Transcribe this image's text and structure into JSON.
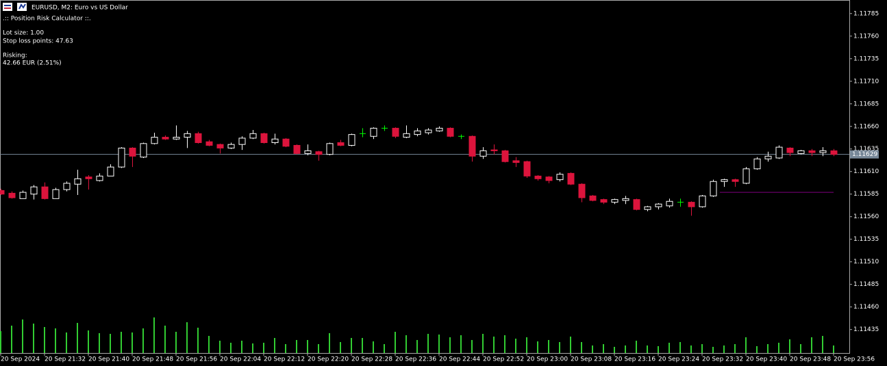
{
  "chart_data": {
    "type": "candlestick",
    "title": "EURUSD, M2:  Euro vs US Dollar",
    "overlay_text": [
      ".:: Position Risk Calculator ::.",
      "Lot size: 1.00",
      "Stop loss points: 47.63",
      "Risking:",
      "42.66 EUR (2.51%)"
    ],
    "categories": [
      "20 Sep 2024",
      null,
      null,
      null,
      "20 Sep 21:32",
      null,
      null,
      null,
      "20 Sep 21:40",
      null,
      null,
      null,
      "20 Sep 21:48",
      null,
      null,
      null,
      "20 Sep 21:56",
      null,
      null,
      null,
      "20 Sep 22:04",
      null,
      null,
      null,
      "20 Sep 22:12",
      null,
      null,
      null,
      "20 Sep 22:20",
      null,
      null,
      null,
      "20 Sep 22:28",
      null,
      null,
      null,
      "20 Sep 22:36",
      null,
      null,
      null,
      "20 Sep 22:44",
      null,
      null,
      null,
      "20 Sep 22:52",
      null,
      null,
      null,
      "20 Sep 23:00",
      null,
      null,
      null,
      "20 Sep 23:08",
      null,
      null,
      null,
      "20 Sep 23:16",
      null,
      null,
      null,
      "20 Sep 23:24",
      null,
      null,
      null,
      "20 Sep 23:32",
      null,
      null,
      null,
      "20 Sep 23:40",
      null,
      null,
      null,
      "20 Sep 23:48",
      null,
      null,
      null,
      "20 Sep 23:56"
    ],
    "open": [
      1.11589,
      1.11586,
      1.1158,
      1.11585,
      1.11593,
      1.1158,
      1.1159,
      1.11596,
      1.11604,
      1.116,
      1.11605,
      1.11615,
      1.11636,
      1.11626,
      1.11641,
      1.11648,
      1.11646,
      1.11648,
      1.11652,
      1.11643,
      1.1164,
      1.11636,
      1.1164,
      1.11647,
      1.11652,
      1.11642,
      1.11646,
      1.11639,
      1.1163,
      1.11632,
      1.11629,
      1.11642,
      1.11639,
      1.11652,
      1.11649,
      1.11658,
      1.11658,
      1.11648,
      1.11651,
      1.11653,
      1.11655,
      1.11658,
      1.11649,
      1.11649,
      1.11627,
      1.11634,
      1.11633,
      1.11622,
      1.11621,
      1.11605,
      1.11604,
      1.11601,
      1.11608,
      1.11596,
      1.11583,
      1.11579,
      1.11576,
      1.11578,
      1.11579,
      1.11568,
      1.11571,
      1.11572,
      1.11576,
      1.11576,
      1.11571,
      1.11583,
      1.11599,
      1.11601,
      1.11597,
      1.11613,
      1.11624,
      1.11625,
      1.11636,
      1.1163,
      1.11633,
      1.11631,
      1.11633
    ],
    "high": [
      1.11591,
      1.11588,
      1.11589,
      1.11595,
      1.11598,
      1.11592,
      1.11599,
      1.11612,
      1.11606,
      1.11608,
      1.11618,
      1.11637,
      1.11637,
      1.11642,
      1.11653,
      1.1165,
      1.11661,
      1.11655,
      1.11654,
      1.11645,
      1.11641,
      1.11642,
      1.11649,
      1.11656,
      1.11653,
      1.11652,
      1.11647,
      1.1164,
      1.1164,
      1.11633,
      1.11642,
      1.11645,
      1.11652,
      1.11658,
      1.11659,
      1.11661,
      1.11659,
      1.11661,
      1.11658,
      1.11658,
      1.1166,
      1.11659,
      1.11651,
      1.1165,
      1.11637,
      1.1164,
      1.11634,
      1.11626,
      1.11622,
      1.11606,
      1.11605,
      1.11609,
      1.11609,
      1.11597,
      1.11584,
      1.1158,
      1.1158,
      1.11583,
      1.1158,
      1.11572,
      1.11575,
      1.1158,
      1.1158,
      1.11577,
      1.11584,
      1.11601,
      1.11602,
      1.11602,
      1.11615,
      1.11626,
      1.11632,
      1.11639,
      1.11637,
      1.11634,
      1.11635,
      1.11637,
      1.11635
    ],
    "low": [
      1.11584,
      1.1158,
      1.1158,
      1.11579,
      1.11579,
      1.1158,
      1.11588,
      1.11584,
      1.1159,
      1.11599,
      1.11605,
      1.11614,
      1.11615,
      1.11625,
      1.1164,
      1.11645,
      1.11645,
      1.11636,
      1.11641,
      1.11638,
      1.1163,
      1.11635,
      1.11634,
      1.11646,
      1.11641,
      1.1164,
      1.11637,
      1.11629,
      1.11628,
      1.11622,
      1.11628,
      1.11638,
      1.11638,
      1.11648,
      1.11646,
      1.11655,
      1.11647,
      1.11647,
      1.11649,
      1.11651,
      1.11654,
      1.11648,
      1.11646,
      1.11621,
      1.11624,
      1.11629,
      1.1162,
      1.11615,
      1.11603,
      1.116,
      1.11597,
      1.11599,
      1.11595,
      1.11576,
      1.11577,
      1.11574,
      1.11574,
      1.11574,
      1.11567,
      1.11566,
      1.11568,
      1.1157,
      1.11571,
      1.11561,
      1.1157,
      1.11582,
      1.11593,
      1.11593,
      1.11596,
      1.11612,
      1.11621,
      1.11624,
      1.11627,
      1.11629,
      1.11627,
      1.11627,
      1.11627
    ],
    "close": [
      1.11585,
      1.11581,
      1.11587,
      1.11593,
      1.1158,
      1.1159,
      1.11597,
      1.11602,
      1.11602,
      1.11605,
      1.11615,
      1.11636,
      1.11627,
      1.11641,
      1.11648,
      1.11646,
      1.11648,
      1.11652,
      1.11642,
      1.11639,
      1.11636,
      1.1164,
      1.11647,
      1.11652,
      1.11642,
      1.11646,
      1.11638,
      1.1163,
      1.11633,
      1.11629,
      1.11641,
      1.11639,
      1.11651,
      1.11652,
      1.11658,
      1.11658,
      1.11649,
      1.11652,
      1.11655,
      1.11656,
      1.11658,
      1.11649,
      1.11649,
      1.11627,
      1.11633,
      1.11633,
      1.11621,
      1.1162,
      1.11605,
      1.11602,
      1.116,
      1.11607,
      1.11596,
      1.11581,
      1.11578,
      1.11576,
      1.11579,
      1.1158,
      1.11568,
      1.11571,
      1.11574,
      1.11577,
      1.11576,
      1.11571,
      1.11583,
      1.11599,
      1.11601,
      1.11599,
      1.11613,
      1.11624,
      1.11627,
      1.11637,
      1.11631,
      1.11633,
      1.11631,
      1.11633,
      1.11629
    ],
    "volumes": [
      32,
      40,
      49,
      43,
      38,
      36,
      30,
      44,
      33,
      29,
      28,
      31,
      30,
      36,
      52,
      40,
      31,
      45,
      37,
      25,
      18,
      15,
      18,
      14,
      15,
      22,
      13,
      19,
      19,
      13,
      29,
      16,
      22,
      22,
      17,
      13,
      31,
      26,
      19,
      28,
      27,
      23,
      26,
      19,
      28,
      24,
      26,
      21,
      23,
      17,
      19,
      16,
      24,
      16,
      11,
      13,
      9,
      11,
      18,
      11,
      10,
      15,
      16,
      11,
      13,
      9,
      11,
      13,
      23,
      10,
      13,
      15,
      20,
      13,
      23,
      25,
      11
    ],
    "ylim": [
      1.11409,
      1.118
    ],
    "yticks": [
      1.11785,
      {
        "value": 1.1176,
        "label": "1.11760"
      },
      1.11735,
      {
        "value": 1.1171,
        "label": "1.11710"
      },
      1.11685,
      {
        "value": 1.1166,
        "label": "1.11660"
      },
      1.11635,
      {
        "value": 1.1161,
        "label": "1.11610"
      },
      1.11585,
      {
        "value": 1.1156,
        "label": "1.11560"
      },
      1.11535,
      {
        "value": 1.1151,
        "label": "1.11510"
      },
      1.11485,
      {
        "value": 1.1146,
        "label": "1.11460"
      },
      1.11435
    ],
    "bid": 1.11629,
    "stop_loss_level": 1.11587,
    "bull_color": "#ffffff",
    "bear_color": "#dc143c",
    "doji_color": "#00ff00",
    "volume_color": "#32cd32",
    "bid_color": "#778899",
    "stop_color": "#800080"
  }
}
